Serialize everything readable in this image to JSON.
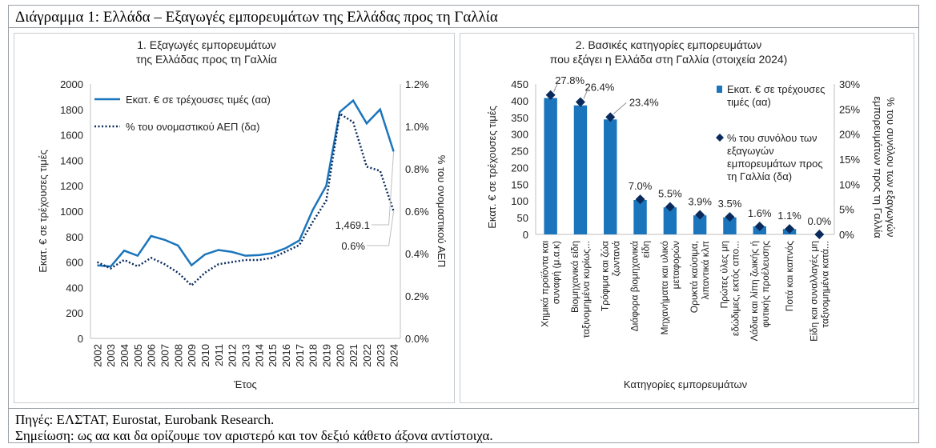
{
  "header": {
    "title": "Διάγραμμα 1: Ελλάδα – Εξαγωγές εμπορευμάτων της Ελλάδας προς τη Γαλλία"
  },
  "footer": {
    "sources": "Πηγές: ΕΛΣΤΑΤ, Eurostat, Eurobank Research.",
    "note": "Σημείωση: ως αα και δα ορίζουμε τον αριστερό και τον δεξιό κάθετο άξονα αντίστοιχα."
  },
  "colors": {
    "accent": "#1b75bc",
    "navy": "#0b2a5c",
    "axis": "#bfbfbf"
  },
  "chart_data": [
    {
      "type": "line",
      "title": [
        "1. Εξαγωγές εμπορευμάτων",
        "της Ελλάδας προς τη Γαλλία"
      ],
      "xlabel": "Έτος",
      "ylabel": "Εκατ. € σε τρέχουσες τιμές",
      "y2label": "% του ονομαστικού ΑΕΠ",
      "x": [
        "2002",
        "2003",
        "2004",
        "2005",
        "2006",
        "2007",
        "2008",
        "2009",
        "2010",
        "2011",
        "2012",
        "2013",
        "2014",
        "2015",
        "2016",
        "2017",
        "2018",
        "2019",
        "2020",
        "2021",
        "2022",
        "2023",
        "2024"
      ],
      "ylim": [
        0,
        2000
      ],
      "yticks": [
        "0",
        "200",
        "400",
        "600",
        "800",
        "1000",
        "1200",
        "1400",
        "1600",
        "1800",
        "2000"
      ],
      "y2lim": [
        0,
        1.2
      ],
      "y2ticks": [
        "0.0%",
        "0.2%",
        "0.4%",
        "0.6%",
        "0.8%",
        "1.0%",
        "1.2%"
      ],
      "legend_position": "top-left",
      "series": [
        {
          "name": "Εκατ. € σε τρέχουσες τιμές (αα)",
          "axis": "left",
          "style": "solid",
          "values": [
            575,
            565,
            690,
            650,
            805,
            775,
            730,
            575,
            660,
            695,
            680,
            650,
            655,
            670,
            710,
            770,
            1010,
            1200,
            1780,
            1870,
            1690,
            1800,
            1469.1
          ]
        },
        {
          "name": "% του ονομαστικού ΑΕΠ (δα)",
          "axis": "right",
          "style": "dotted",
          "values": [
            0.36,
            0.33,
            0.37,
            0.34,
            0.38,
            0.35,
            0.31,
            0.25,
            0.31,
            0.35,
            0.36,
            0.37,
            0.37,
            0.38,
            0.41,
            0.44,
            0.55,
            0.65,
            1.06,
            1.02,
            0.81,
            0.79,
            0.6
          ]
        }
      ],
      "annotations": [
        {
          "text": "1,469.1",
          "series": 0,
          "index": 22
        },
        {
          "text": "0.6%",
          "series": 1,
          "index": 22
        }
      ]
    },
    {
      "type": "bar",
      "title": [
        "2. Βασικές κατηγορίες εμπορευμάτων",
        "που εξάγει η Ελλάδα στη Γαλλία (στοιχεία 2024)"
      ],
      "xlabel": "Κατηγορίες εμπορευμάτων",
      "ylabel": "Εκατ. € σε τρέχουσες τιμές",
      "y2label": [
        "% του συνόλου των εξαγωγών",
        "εμπορευμάτων προς τη Γαλλία"
      ],
      "ylim": [
        0,
        450
      ],
      "yticks": [
        "0",
        "50",
        "100",
        "150",
        "200",
        "250",
        "300",
        "350",
        "400",
        "450"
      ],
      "y2lim": [
        0,
        30
      ],
      "y2ticks": [
        "0%",
        "5%",
        "10%",
        "15%",
        "20%",
        "25%",
        "30%"
      ],
      "categories": [
        [
          "Χημικά προϊόντα και",
          "συναφή (μ.α.κ)"
        ],
        [
          "Βιομηχανικά είδη",
          "ταξινομημένα κυρίως..."
        ],
        [
          "Τρόφιμα και ζώα",
          "ζωντανά"
        ],
        [
          "Διάφορα βιομηχανικά",
          "είδη"
        ],
        [
          "Μηχανήματα και υλικό",
          "μεταφορών"
        ],
        [
          "Ορυκτά καύσιμα,",
          "λιπαντικά κλπ"
        ],
        [
          "Πρώτες ύλες μη",
          "εδώδιμες, εκτός απο..."
        ],
        [
          "Λάδια και λίπη ζωικής ή",
          "φυτικής προέλευσης"
        ],
        [
          "Ποτά και καπνός"
        ],
        [
          "Είδη και συναλλαγές μη",
          "ταξινομημένα κατά..."
        ]
      ],
      "legend_position": "top-right",
      "series": [
        {
          "name": [
            "Εκατ. € σε τρέχουσες",
            "τιμές (αα)"
          ],
          "axis": "left",
          "style": "bar",
          "values": [
            408,
            386,
            344,
            103,
            81,
            57,
            51,
            24,
            16,
            0
          ]
        },
        {
          "name": [
            "% του συνόλου των",
            "εξαγωγών",
            "εμπορευμάτων προς",
            "τη Γαλλία (δα)"
          ],
          "axis": "right",
          "style": "diamond",
          "values": [
            27.8,
            26.4,
            23.4,
            7.0,
            5.5,
            3.9,
            3.5,
            1.6,
            1.1,
            0.0
          ]
        }
      ],
      "data_labels": [
        "27.8%",
        "26.4%",
        "23.4%",
        "7.0%",
        "5.5%",
        "3.9%",
        "3.5%",
        "1.6%",
        "1.1%",
        "0.0%"
      ]
    }
  ]
}
